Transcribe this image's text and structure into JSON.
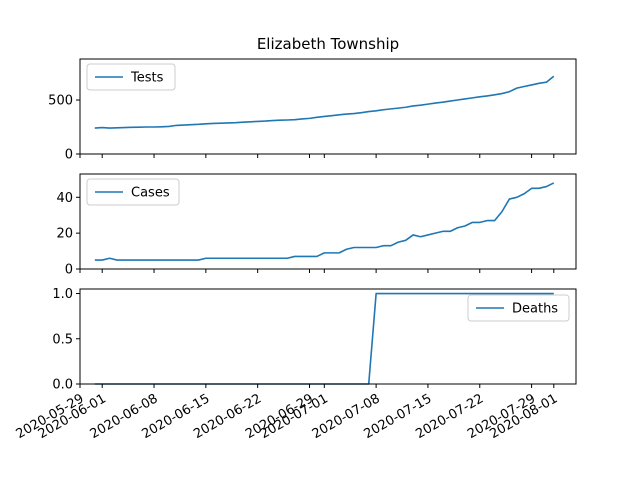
{
  "chart_data": {
    "type": "line",
    "title": "Elizabeth Township",
    "line_color": "#1f77b4",
    "x_dates": [
      "2020-05-31",
      "2020-06-01",
      "2020-06-02",
      "2020-06-03",
      "2020-06-04",
      "2020-06-05",
      "2020-06-06",
      "2020-06-07",
      "2020-06-08",
      "2020-06-09",
      "2020-06-10",
      "2020-06-11",
      "2020-06-12",
      "2020-06-13",
      "2020-06-14",
      "2020-06-15",
      "2020-06-16",
      "2020-06-17",
      "2020-06-18",
      "2020-06-19",
      "2020-06-20",
      "2020-06-21",
      "2020-06-22",
      "2020-06-23",
      "2020-06-24",
      "2020-06-25",
      "2020-06-26",
      "2020-06-27",
      "2020-06-28",
      "2020-06-29",
      "2020-06-30",
      "2020-07-01",
      "2020-07-02",
      "2020-07-03",
      "2020-07-04",
      "2020-07-05",
      "2020-07-06",
      "2020-07-07",
      "2020-07-08",
      "2020-07-09",
      "2020-07-10",
      "2020-07-11",
      "2020-07-12",
      "2020-07-13",
      "2020-07-14",
      "2020-07-15",
      "2020-07-16",
      "2020-07-17",
      "2020-07-18",
      "2020-07-19",
      "2020-07-20",
      "2020-07-21",
      "2020-07-22",
      "2020-07-23",
      "2020-07-24",
      "2020-07-25",
      "2020-07-26",
      "2020-07-27",
      "2020-07-28",
      "2020-07-29",
      "2020-07-30",
      "2020-07-31",
      "2020-08-01"
    ],
    "x_tick_labels": [
      "2020-05-29",
      "2020-06-01",
      "2020-06-08",
      "2020-06-15",
      "2020-06-22",
      "2020-06-29",
      "2020-07-01",
      "2020-07-08",
      "2020-07-15",
      "2020-07-22",
      "2020-07-29",
      "2020-08-01"
    ],
    "x_range": [
      "2020-05-29",
      "2020-08-04"
    ],
    "grid": false,
    "panels": [
      {
        "series": [
          {
            "name": "Tests",
            "values": [
              240,
              245,
              240,
              243,
              245,
              247,
              248,
              250,
              250,
              252,
              255,
              265,
              268,
              272,
              275,
              280,
              283,
              285,
              288,
              290,
              295,
              298,
              302,
              305,
              310,
              313,
              315,
              318,
              325,
              330,
              340,
              348,
              355,
              363,
              370,
              375,
              383,
              393,
              400,
              410,
              418,
              425,
              433,
              445,
              452,
              462,
              472,
              480,
              490,
              500,
              510,
              520,
              530,
              538,
              548,
              560,
              577,
              610,
              625,
              640,
              655,
              665,
              720
            ]
          }
        ],
        "ylim": [
          0,
          880
        ],
        "yticks": [
          0,
          500
        ],
        "legend": "top-left"
      },
      {
        "series": [
          {
            "name": "Cases",
            "values": [
              5,
              5,
              6,
              5,
              5,
              5,
              5,
              5,
              5,
              5,
              5,
              5,
              5,
              5,
              5,
              6,
              6,
              6,
              6,
              6,
              6,
              6,
              6,
              6,
              6,
              6,
              6,
              7,
              7,
              7,
              7,
              9,
              9,
              9,
              11,
              12,
              12,
              12,
              12,
              13,
              13,
              15,
              16,
              19,
              18,
              19,
              20,
              21,
              21,
              23,
              24,
              26,
              26,
              27,
              27,
              32,
              39,
              40,
              42,
              45,
              45,
              46,
              48
            ]
          }
        ],
        "ylim": [
          0,
          53
        ],
        "yticks": [
          0,
          20,
          40
        ],
        "legend": "top-left"
      },
      {
        "series": [
          {
            "name": "Deaths",
            "values": [
              0,
              0,
              0,
              0,
              0,
              0,
              0,
              0,
              0,
              0,
              0,
              0,
              0,
              0,
              0,
              0,
              0,
              0,
              0,
              0,
              0,
              0,
              0,
              0,
              0,
              0,
              0,
              0,
              0,
              0,
              0,
              0,
              0,
              0,
              0,
              0,
              0,
              0,
              1,
              1,
              1,
              1,
              1,
              1,
              1,
              1,
              1,
              1,
              1,
              1,
              1,
              1,
              1,
              1,
              1,
              1,
              1,
              1,
              1,
              1,
              1,
              1,
              1
            ]
          }
        ],
        "ylim": [
          0,
          1.05
        ],
        "yticks": [
          "0.0",
          "0.5",
          "1.0"
        ],
        "legend": "right"
      }
    ]
  }
}
